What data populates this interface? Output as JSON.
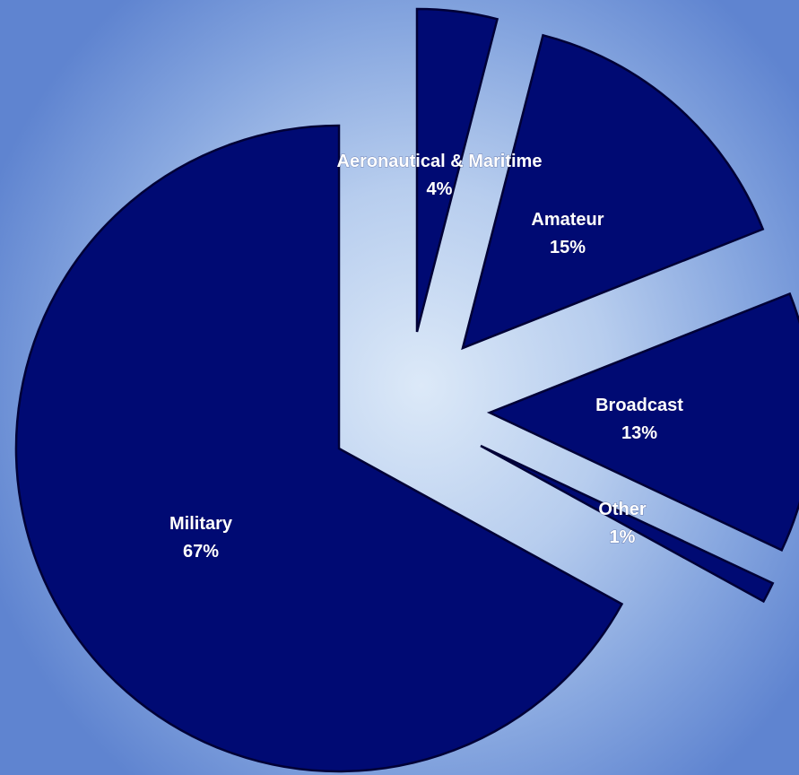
{
  "chart_data": {
    "type": "pie",
    "exploded": true,
    "start_angle_deg": 0,
    "direction": "clockwise",
    "slices": [
      {
        "label": "Aeronautical & Maritime",
        "value": 4,
        "value_label": "4%"
      },
      {
        "label": "Amateur",
        "value": 15,
        "value_label": "15%"
      },
      {
        "label": "Broadcast",
        "value": 13,
        "value_label": "13%"
      },
      {
        "label": "Other",
        "value": 1,
        "value_label": "1%"
      },
      {
        "label": "Military",
        "value": 67,
        "value_label": "67%"
      }
    ],
    "colors": {
      "slice_fill": "#000a73",
      "slice_edge": "#000036",
      "label_text": "#ffffff",
      "background_center": "#dce9f8",
      "background_edge": "#5f84d0"
    }
  }
}
